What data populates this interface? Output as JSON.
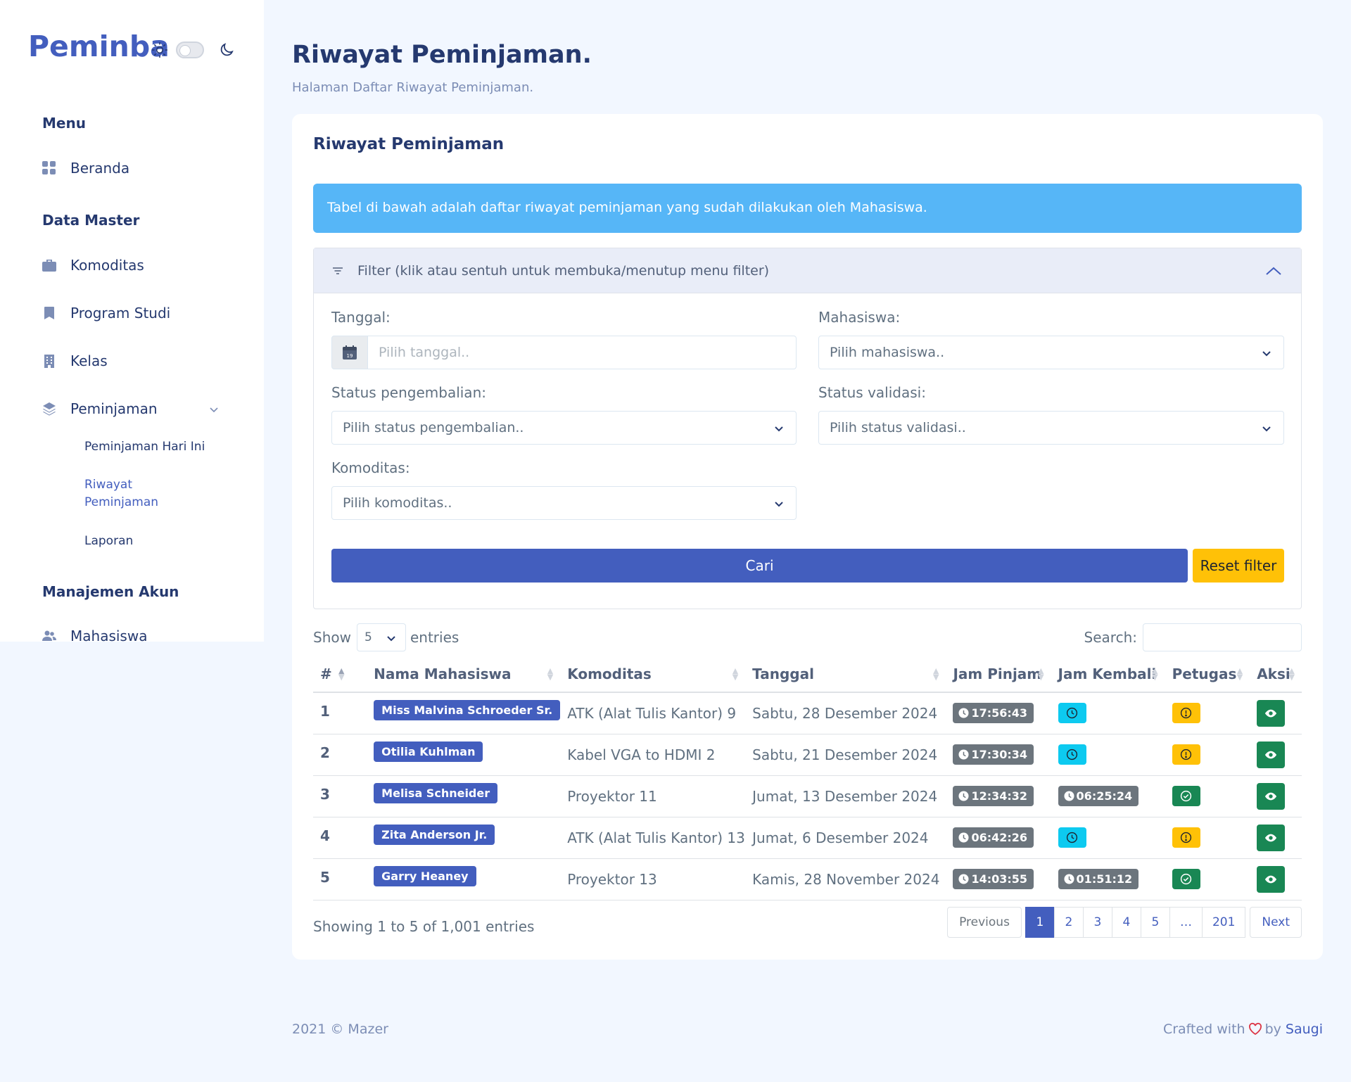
{
  "sidebar": {
    "brand": "Peminba",
    "sections": {
      "menu": "Menu",
      "data_master": "Data Master",
      "manajemen_akun": "Manajemen Akun"
    },
    "items": {
      "beranda": "Beranda",
      "komoditas": "Komoditas",
      "program_studi": "Program Studi",
      "kelas": "Kelas",
      "peminjaman": "Peminjaman",
      "mahasiswa": "Mahasiswa"
    },
    "sub_items": {
      "hari_ini": "Peminjaman Hari Ini",
      "riwayat_line1": "Riwayat",
      "riwayat_line2": "Peminjaman",
      "laporan": "Laporan"
    }
  },
  "header": {
    "title": "Riwayat Peminjaman.",
    "subtitle": "Halaman Daftar Riwayat Peminjaman."
  },
  "card": {
    "title": "Riwayat Peminjaman",
    "alert": "Tabel di bawah adalah daftar riwayat peminjaman yang sudah dilakukan oleh Mahasiswa."
  },
  "filter": {
    "header": "Filter (klik atau sentuh untuk membuka/menutup menu filter)",
    "tanggal_label": "Tanggal:",
    "tanggal_placeholder": "Pilih tanggal..",
    "calendar_day": "19",
    "mahasiswa_label": "Mahasiswa:",
    "mahasiswa_value": "Pilih mahasiswa..",
    "status_pengembalian_label": "Status pengembalian:",
    "status_pengembalian_value": "Pilih status pengembalian..",
    "status_validasi_label": "Status validasi:",
    "status_validasi_value": "Pilih status validasi..",
    "komoditas_label": "Komoditas:",
    "komoditas_value": "Pilih komoditas..",
    "cari": "Cari",
    "reset": "Reset filter"
  },
  "table_controls": {
    "show": "Show",
    "length": "5",
    "entries": "entries",
    "search": "Search:"
  },
  "table": {
    "columns": [
      "#",
      "Nama Mahasiswa",
      "Komoditas",
      "Tanggal",
      "Jam Pinjam",
      "Jam Kembali",
      "Petugas",
      "Aksi"
    ],
    "rows": [
      {
        "no": "1",
        "nama": "Miss Malvina Schroeder Sr.",
        "komoditas": "ATK (Alat Tulis Kantor) 9",
        "tanggal": "Sabtu, 28 Desember 2024",
        "jam_pinjam": "17:56:43",
        "jam_kembali": "",
        "petugas": "warning"
      },
      {
        "no": "2",
        "nama": "Otilia Kuhlman",
        "komoditas": "Kabel VGA to HDMI 2",
        "tanggal": "Sabtu, 21 Desember 2024",
        "jam_pinjam": "17:30:34",
        "jam_kembali": "",
        "petugas": "warning"
      },
      {
        "no": "3",
        "nama": "Melisa Schneider",
        "komoditas": "Proyektor 11",
        "tanggal": "Jumat, 13 Desember 2024",
        "jam_pinjam": "12:34:32",
        "jam_kembali": "06:25:24",
        "petugas": "success"
      },
      {
        "no": "4",
        "nama": "Zita Anderson Jr.",
        "komoditas": "ATK (Alat Tulis Kantor) 13",
        "tanggal": "Jumat, 6 Desember 2024",
        "jam_pinjam": "06:42:26",
        "jam_kembali": "",
        "petugas": "warning"
      },
      {
        "no": "5",
        "nama": "Garry Heaney",
        "komoditas": "Proyektor 13",
        "tanggal": "Kamis, 28 November 2024",
        "jam_pinjam": "14:03:55",
        "jam_kembali": "01:51:12",
        "petugas": "success"
      }
    ]
  },
  "pagination": {
    "info": "Showing 1 to 5 of 1,001 entries",
    "previous": "Previous",
    "pages": [
      "1",
      "2",
      "3",
      "4",
      "5",
      "…",
      "201"
    ],
    "next": "Next"
  },
  "footer": {
    "left": "2021 © Mazer",
    "crafted": "Crafted with",
    "by": "by",
    "author": "Saugi"
  },
  "colors": {
    "primary": "#435ebe",
    "info": "#0dcaf0",
    "warning": "#ffc107",
    "success": "#198754",
    "secondary": "#6c757d",
    "alert": "#56b6f7"
  }
}
